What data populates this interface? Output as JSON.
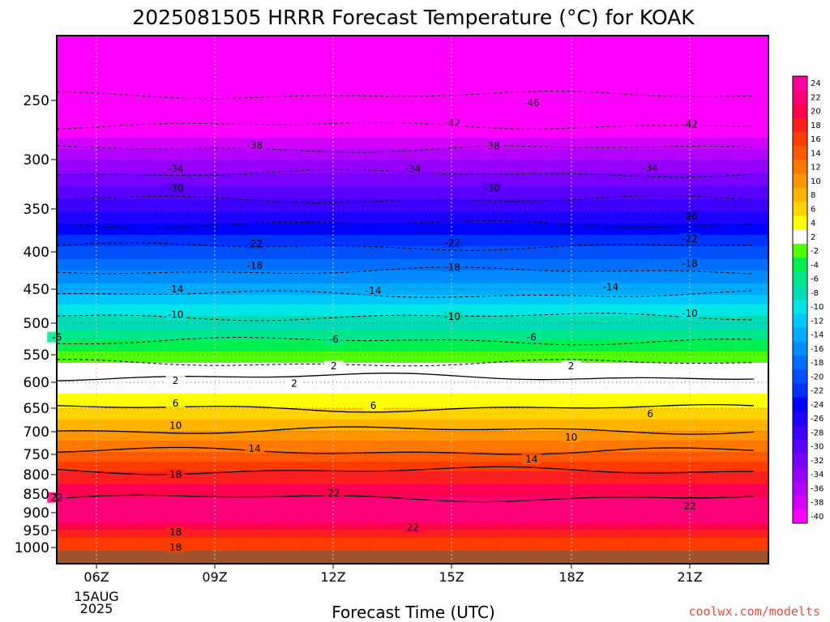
{
  "chart_data": {
    "type": "heatmap",
    "title": "2025081505 HRRR Forecast Temperature (°C) for KOAK",
    "xlabel": "Forecast Time (UTC)",
    "ylabel": "",
    "credit": "coolwx.com/modelts",
    "credit_color": "#e8503c",
    "x_ticks": [
      "06Z",
      "09Z",
      "12Z",
      "15Z",
      "18Z",
      "21Z"
    ],
    "x_date_labels": [
      "15AUG",
      "2025"
    ],
    "y_ticks": [
      250,
      300,
      350,
      400,
      450,
      500,
      550,
      600,
      650,
      700,
      750,
      800,
      850,
      900,
      950,
      1000
    ],
    "y_scale": "log-pressure",
    "y_range_hPa": [
      200,
      1025
    ],
    "x_range_hours_utc": [
      5,
      23
    ],
    "grid": true,
    "legend_placement": "right",
    "colorbar_labels": [
      "24",
      "22",
      "20",
      "18",
      "16",
      "14",
      "12",
      "10",
      "8",
      "6",
      "4",
      "2",
      "-2",
      "-4",
      "-6",
      "-8",
      "-10",
      "-12",
      "-14",
      "-16",
      "-18",
      "-20",
      "-22",
      "-24",
      "-26",
      "-28",
      "-30",
      "-32",
      "-34",
      "-36",
      "-38",
      "-40"
    ],
    "colorbar_colors": [
      "#ff00a0",
      "#ff0078",
      "#ff0050",
      "#ff1e1e",
      "#ff3c00",
      "#ff5a00",
      "#ff7800",
      "#ff9600",
      "#ffb400",
      "#ffd200",
      "#ffff00",
      "#ffffff",
      "#50ff00",
      "#00f050",
      "#00e68c",
      "#00dcb4",
      "#00e6e6",
      "#00c8ff",
      "#00aaff",
      "#008cff",
      "#006eff",
      "#0050ff",
      "#0032ff",
      "#0000ff",
      "#1e00ff",
      "#3c00ff",
      "#5a00ff",
      "#7800ff",
      "#9600ff",
      "#b400ff",
      "#d200ff",
      "#ff00ff"
    ],
    "contours": [
      {
        "value": 2,
        "color": "#000000",
        "dashed": false,
        "label_positions": [
          [
            8.0,
            597
          ],
          [
            11.0,
            602
          ],
          [
            12.0,
            570
          ],
          [
            18.0,
            570
          ]
        ]
      },
      {
        "value": 6,
        "color": "#000000",
        "dashed": false,
        "label_positions": [
          [
            8.0,
            640
          ],
          [
            13.0,
            645
          ],
          [
            20.0,
            662
          ]
        ]
      },
      {
        "value": 10,
        "color": "#000000",
        "dashed": false,
        "label_positions": [
          [
            8.0,
            687
          ],
          [
            18.0,
            712
          ]
        ]
      },
      {
        "value": 14,
        "color": "#000000",
        "dashed": false,
        "label_positions": [
          [
            10.0,
            737
          ],
          [
            17.0,
            762
          ]
        ]
      },
      {
        "value": 18,
        "color": "#000000",
        "dashed": false,
        "label_positions": [
          [
            8.0,
            800
          ],
          [
            8.0,
            955
          ],
          [
            8.0,
            1000
          ]
        ]
      },
      {
        "value": 22,
        "color": "#000000",
        "dashed": false,
        "label_positions": [
          [
            5.0,
            860
          ],
          [
            12.0,
            848
          ],
          [
            21.0,
            882
          ],
          [
            14.0,
            942
          ]
        ]
      },
      {
        "value": -2,
        "color": "#000000",
        "dashed": true,
        "label_positions": []
      },
      {
        "value": -6,
        "color": "#000000",
        "dashed": true,
        "label_positions": [
          [
            5.0,
            522
          ],
          [
            12.0,
            525
          ],
          [
            17.0,
            522
          ]
        ]
      },
      {
        "value": -10,
        "color": "#000000",
        "dashed": true,
        "label_positions": [
          [
            8.0,
            487
          ],
          [
            15.0,
            490
          ],
          [
            21.0,
            485
          ]
        ]
      },
      {
        "value": -14,
        "color": "#000000",
        "dashed": true,
        "label_positions": [
          [
            8.0,
            450
          ],
          [
            13.0,
            452
          ],
          [
            19.0,
            447
          ]
        ]
      },
      {
        "value": -18,
        "color": "#000000",
        "dashed": true,
        "label_positions": [
          [
            10.0,
            418
          ],
          [
            15.0,
            420
          ],
          [
            21.0,
            415
          ]
        ]
      },
      {
        "value": -22,
        "color": "#000000",
        "dashed": true,
        "label_positions": [
          [
            10.0,
            390
          ],
          [
            15.0,
            389
          ],
          [
            21.0,
            384
          ]
        ]
      },
      {
        "value": -26,
        "color": "#000000",
        "dashed": true,
        "label_positions": [
          [
            21.0,
            358
          ]
        ]
      },
      {
        "value": -30,
        "color": "#000000",
        "dashed": true,
        "label_positions": [
          [
            8.0,
            328
          ],
          [
            16.0,
            328
          ]
        ]
      },
      {
        "value": -34,
        "color": "#000000",
        "dashed": true,
        "label_positions": [
          [
            8.0,
            309
          ],
          [
            14.0,
            309
          ],
          [
            20.0,
            308
          ]
        ]
      },
      {
        "value": -38,
        "color": "#000000",
        "dashed": true,
        "label_positions": [
          [
            10.0,
            287
          ],
          [
            16.0,
            288
          ]
        ]
      },
      {
        "value": -42,
        "color": "#000000",
        "dashed": true,
        "label_positions": [
          [
            15.0,
            268
          ],
          [
            21.0,
            269
          ]
        ]
      },
      {
        "value": -46,
        "color": "#000000",
        "dashed": true,
        "label_positions": [
          [
            17.0,
            252
          ]
        ]
      }
    ]
  }
}
